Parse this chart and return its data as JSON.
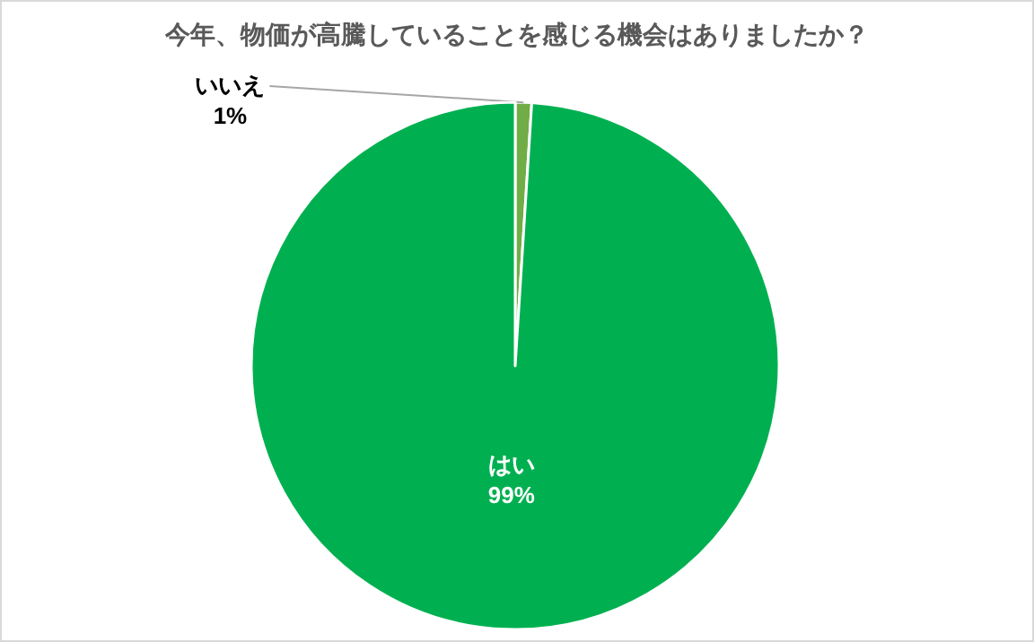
{
  "chart_data": {
    "type": "pie",
    "title": "今年、物価が高騰していることを感じる機会はありましたか？",
    "categories": [
      "いいえ",
      "はい"
    ],
    "values": [
      1,
      99
    ],
    "colors": [
      "#70ad47",
      "#00b050"
    ],
    "value_labels": [
      "1%",
      "99%"
    ]
  }
}
